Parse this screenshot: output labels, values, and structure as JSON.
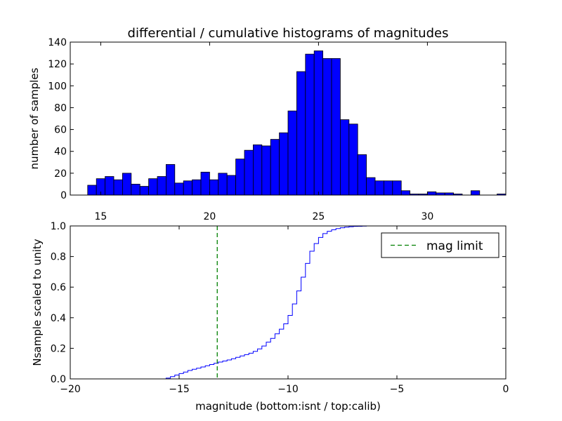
{
  "colors": {
    "bar_fill": "#0000ff",
    "bar_edge": "#000000",
    "step_line": "#0000ff",
    "limit_line": "#008000",
    "axes": "#000000",
    "background": "#ffffff"
  },
  "chart_data": [
    {
      "type": "bar",
      "title": "differential / cumulative histograms of magnitudes",
      "ylabel": "number of samples",
      "xlabel": "",
      "xlim": [
        13.6,
        33.6
      ],
      "ylim": [
        0,
        140
      ],
      "xticks": [
        15,
        20,
        25,
        30
      ],
      "yticks": [
        0,
        20,
        40,
        60,
        80,
        100,
        120,
        140
      ],
      "x_axis_position": "top of lower panel",
      "bin_width": 0.4,
      "bin_starts": [
        14.4,
        14.8,
        15.2,
        15.6,
        16.0,
        16.4,
        16.8,
        17.2,
        17.6,
        18.0,
        18.4,
        18.8,
        19.2,
        19.6,
        20.0,
        20.4,
        20.8,
        21.2,
        21.6,
        22.0,
        22.4,
        22.8,
        23.2,
        23.6,
        24.0,
        24.4,
        24.8,
        25.2,
        25.6,
        26.0,
        26.4,
        26.8,
        27.2,
        27.6,
        28.0,
        28.4,
        28.8,
        29.2,
        29.6,
        30.0,
        30.4,
        30.8,
        31.2,
        31.6,
        32.0,
        32.4,
        32.8,
        33.2
      ],
      "values": [
        9,
        15,
        17,
        14,
        20,
        10,
        8,
        15,
        17,
        28,
        11,
        13,
        14,
        21,
        14,
        20,
        18,
        33,
        41,
        46,
        45,
        51,
        57,
        77,
        113,
        129,
        132,
        125,
        125,
        69,
        65,
        37,
        16,
        13,
        13,
        13,
        4,
        1,
        1,
        3,
        2,
        2,
        1,
        0,
        4,
        0,
        0,
        1
      ]
    },
    {
      "type": "line",
      "style": "step",
      "ylabel": "Nsample scaled to unity",
      "xlabel": "magnitude (bottom:isnt / top:calib)",
      "xlim": [
        -20,
        0
      ],
      "ylim": [
        0,
        1
      ],
      "xticks": [
        -20,
        -15,
        -10,
        -5,
        0
      ],
      "xtick_labels": [
        "−20",
        "−15",
        "−10",
        "−5",
        "0"
      ],
      "yticks": [
        0.0,
        0.2,
        0.4,
        0.6,
        0.8,
        1.0
      ],
      "ytick_labels": [
        "0.0",
        "0.2",
        "0.4",
        "0.6",
        "0.8",
        "1.0"
      ],
      "x": [
        -20.0,
        -15.6,
        -15.4,
        -15.2,
        -15.0,
        -14.8,
        -14.6,
        -14.4,
        -14.2,
        -14.0,
        -13.8,
        -13.6,
        -13.4,
        -13.2,
        -13.0,
        -12.8,
        -12.6,
        -12.4,
        -12.2,
        -12.0,
        -11.8,
        -11.6,
        -11.4,
        -11.2,
        -11.0,
        -10.8,
        -10.6,
        -10.4,
        -10.2,
        -10.0,
        -9.8,
        -9.6,
        -9.4,
        -9.2,
        -9.0,
        -8.8,
        -8.6,
        -8.4,
        -8.2,
        -8.0,
        -7.8,
        -7.6,
        -7.4,
        -7.2,
        -7.0,
        -6.8,
        -6.6,
        -6.4,
        -6.2,
        -6.0,
        -5.8,
        -5.6,
        -5.4,
        -5.2,
        -5.0,
        0.0
      ],
      "y": [
        0.0,
        0.005,
        0.015,
        0.025,
        0.035,
        0.045,
        0.055,
        0.063,
        0.07,
        0.078,
        0.086,
        0.094,
        0.102,
        0.11,
        0.117,
        0.124,
        0.132,
        0.141,
        0.15,
        0.159,
        0.168,
        0.18,
        0.196,
        0.215,
        0.24,
        0.265,
        0.295,
        0.325,
        0.36,
        0.415,
        0.49,
        0.575,
        0.665,
        0.755,
        0.835,
        0.885,
        0.925,
        0.95,
        0.965,
        0.975,
        0.983,
        0.988,
        0.992,
        0.995,
        0.997,
        0.998,
        0.999,
        1.0,
        1.0,
        1.0,
        1.0,
        1.0,
        1.0,
        1.0,
        1.0,
        1.0
      ],
      "vline": {
        "x": -13.25,
        "label": "mag limit",
        "linestyle": "dashed"
      },
      "legend": {
        "entries": [
          "mag limit"
        ],
        "position": "top-right"
      }
    }
  ]
}
